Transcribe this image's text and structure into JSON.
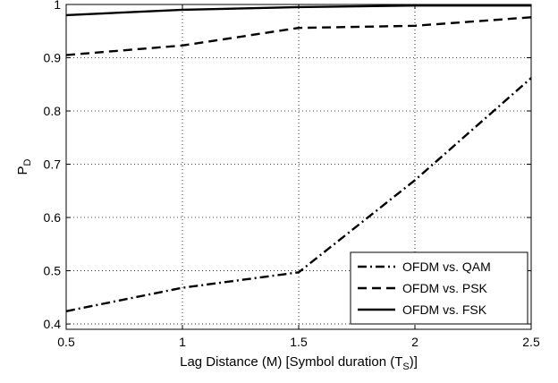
{
  "chart_data": {
    "type": "line",
    "title": "",
    "xlabel": "Lag Distance (M) [Symbol duration (T",
    "xlabel_sub": "S",
    "xlabel_end": ")]",
    "ylabel": "P",
    "ylabel_sub": "D",
    "xlim": [
      0.5,
      2.5
    ],
    "ylim": [
      0.39,
      1.0
    ],
    "xticks": [
      0.5,
      1,
      1.5,
      2,
      2.5
    ],
    "xtick_labels": [
      "0.5",
      "1",
      "1.5",
      "2",
      "2.5"
    ],
    "yticks": [
      0.4,
      0.5,
      0.6,
      0.7,
      0.8,
      0.9,
      1.0
    ],
    "ytick_labels": [
      "0.4",
      "0.5",
      "0.6",
      "0.7",
      "0.8",
      "0.9",
      "1"
    ],
    "grid": true,
    "legend_position": "bottom-right",
    "x": [
      0.5,
      1,
      1.5,
      2,
      2.5
    ],
    "series": [
      {
        "name": "OFDM vs. QAM",
        "style": "dash-dot",
        "values": [
          0.424,
          0.468,
          0.497,
          0.67,
          0.862
        ]
      },
      {
        "name": "OFDM vs. PSK",
        "style": "dashed",
        "values": [
          0.905,
          0.923,
          0.956,
          0.96,
          0.976
        ]
      },
      {
        "name": "OFDM vs. FSK",
        "style": "solid",
        "values": [
          0.98,
          0.99,
          0.995,
          0.998,
          0.998
        ]
      }
    ],
    "colors": {
      "line": "#000000",
      "grid": "#000000",
      "background": "#ffffff"
    }
  }
}
